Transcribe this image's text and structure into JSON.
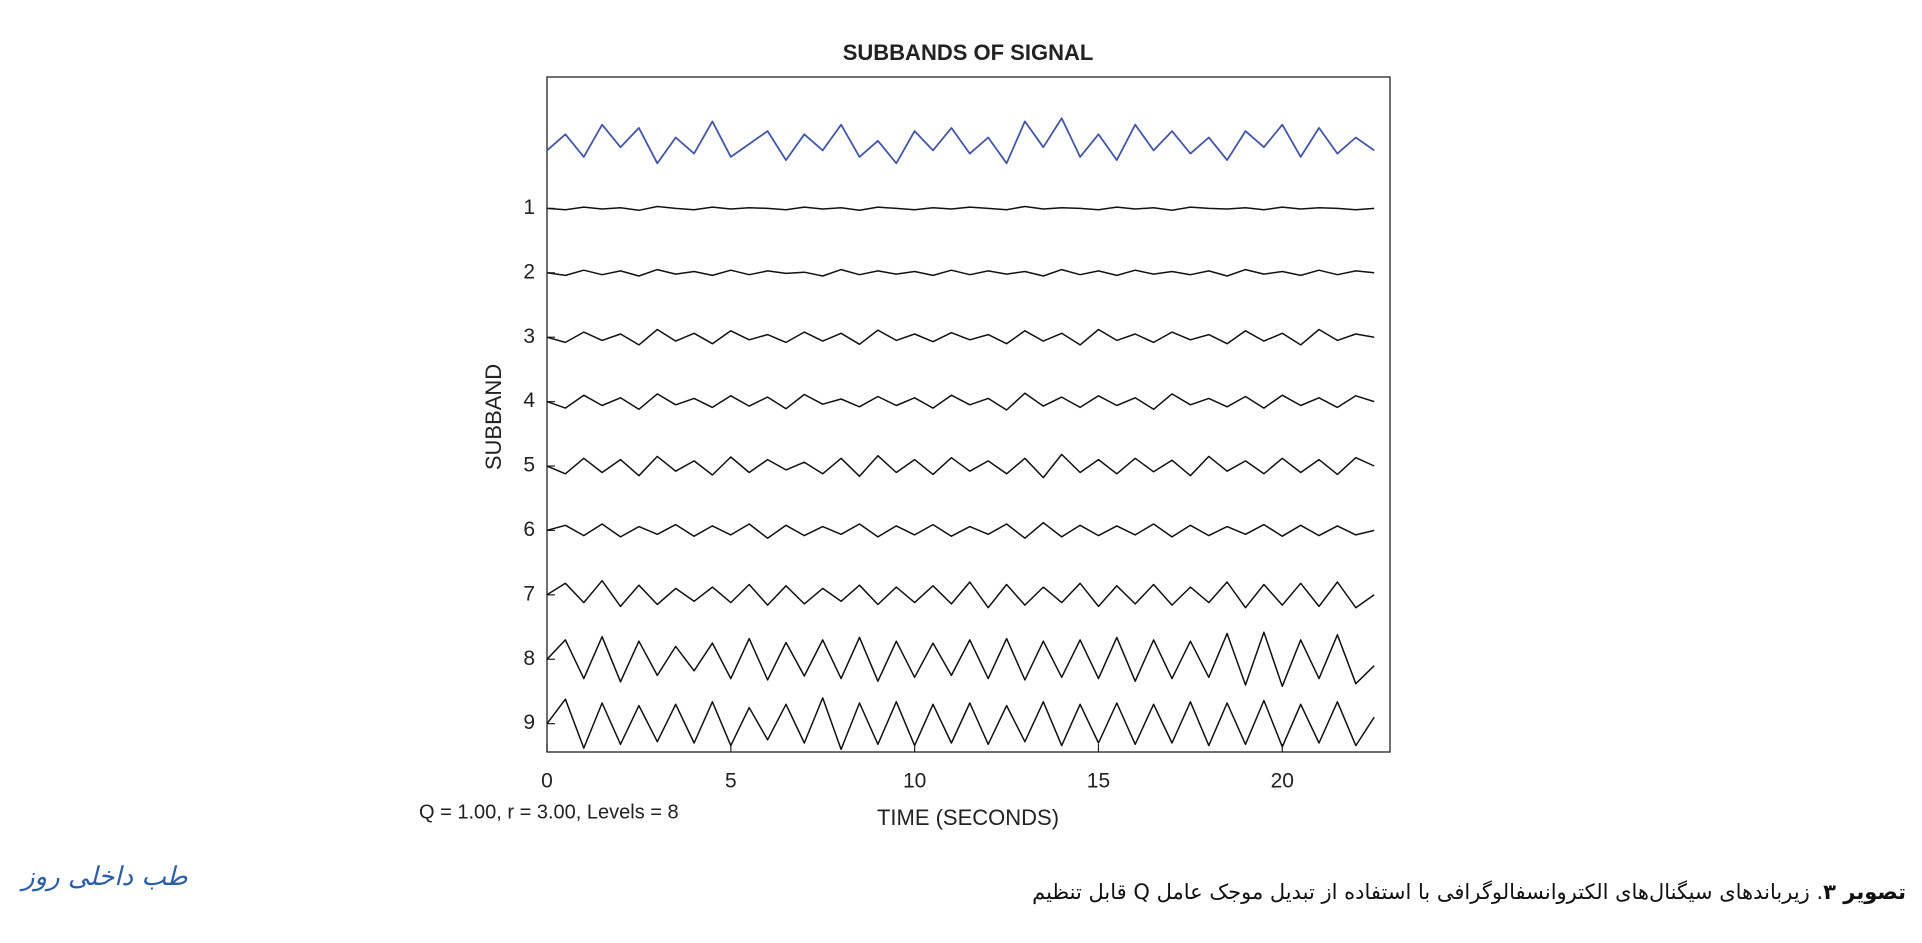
{
  "chart_data": {
    "type": "line",
    "title": "SUBBANDS OF SIGNAL",
    "x_label": "TIME (SECONDS)",
    "y_label": "SUBBAND",
    "annotation": "Q = 1.00, r = 3.00, Levels = 8",
    "xlim": [
      0,
      22.93
    ],
    "xticks": [
      0,
      5,
      10,
      15,
      20
    ],
    "ylim": [
      9.44,
      -1.04
    ],
    "yticks": [
      1,
      2,
      3,
      4,
      5,
      6,
      7,
      8,
      9
    ],
    "x": [
      0,
      0.5,
      1,
      1.5,
      2,
      2.5,
      3,
      3.5,
      4,
      4.5,
      5,
      5.5,
      6,
      6.5,
      7,
      7.5,
      8,
      8.5,
      9,
      9.5,
      10,
      10.5,
      11,
      11.5,
      12,
      12.5,
      13,
      13.5,
      14,
      14.5,
      15,
      15.5,
      16,
      16.5,
      17,
      17.5,
      18,
      18.5,
      19,
      19.5,
      20,
      20.5,
      21,
      21.5,
      22,
      22.5
    ],
    "series": [
      {
        "color": "#4356a8",
        "values": [
          0.1,
          -0.15,
          0.2,
          -0.3,
          0.05,
          -0.25,
          0.3,
          -0.1,
          0.15,
          -0.35,
          0.2,
          0.0,
          -0.2,
          0.25,
          -0.15,
          0.1,
          -0.3,
          0.2,
          -0.05,
          0.3,
          -0.2,
          0.1,
          -0.25,
          0.15,
          -0.1,
          0.3,
          -0.35,
          0.05,
          -0.4,
          0.2,
          -0.15,
          0.25,
          -0.3,
          0.1,
          -0.2,
          0.15,
          -0.1,
          0.25,
          -0.2,
          0.05,
          -0.3,
          0.2,
          -0.25,
          0.15,
          -0.1,
          0.1
        ]
      },
      {
        "color": "#111111",
        "values": [
          1,
          1.02,
          0.98,
          1.01,
          0.99,
          1.03,
          0.97,
          1,
          1.02,
          0.98,
          1.01,
          0.99,
          1,
          1.02,
          0.98,
          1.01,
          0.99,
          1.03,
          0.98,
          1,
          1.02,
          0.99,
          1.01,
          0.98,
          1,
          1.02,
          0.97,
          1.01,
          0.99,
          1,
          1.02,
          0.98,
          1.01,
          0.99,
          1.03,
          0.98,
          1,
          1.01,
          0.99,
          1.02,
          0.98,
          1.01,
          0.99,
          1,
          1.02,
          1
        ]
      },
      {
        "color": "#111111",
        "values": [
          2,
          2.04,
          1.96,
          2.03,
          1.97,
          2.05,
          1.95,
          2.02,
          1.98,
          2.04,
          1.96,
          2.03,
          1.97,
          2.01,
          1.99,
          2.05,
          1.95,
          2.03,
          1.97,
          2.02,
          1.98,
          2.04,
          1.96,
          2.03,
          1.97,
          2.02,
          1.98,
          2.05,
          1.95,
          2.03,
          1.97,
          2.04,
          1.96,
          2.02,
          1.98,
          2.03,
          1.97,
          2.05,
          1.95,
          2.02,
          1.98,
          2.04,
          1.96,
          2.03,
          1.97,
          2
        ]
      },
      {
        "color": "#111111",
        "values": [
          3,
          3.08,
          2.92,
          3.05,
          2.95,
          3.12,
          2.88,
          3.06,
          2.94,
          3.1,
          2.9,
          3.04,
          2.96,
          3.08,
          2.92,
          3.06,
          2.94,
          3.11,
          2.89,
          3.05,
          2.95,
          3.07,
          2.93,
          3.04,
          2.96,
          3.1,
          2.9,
          3.06,
          2.94,
          3.12,
          2.88,
          3.05,
          2.95,
          3.08,
          2.92,
          3.04,
          2.96,
          3.1,
          2.9,
          3.06,
          2.94,
          3.12,
          2.88,
          3.05,
          2.95,
          3
        ]
      },
      {
        "color": "#111111",
        "values": [
          4,
          4.1,
          3.9,
          4.06,
          3.94,
          4.12,
          3.88,
          4.05,
          3.95,
          4.09,
          3.91,
          4.07,
          3.93,
          4.11,
          3.89,
          4.04,
          3.96,
          4.08,
          3.92,
          4.06,
          3.94,
          4.1,
          3.9,
          4.05,
          3.95,
          4.13,
          3.87,
          4.07,
          3.93,
          4.09,
          3.91,
          4.06,
          3.94,
          4.12,
          3.88,
          4.05,
          3.95,
          4.08,
          3.92,
          4.1,
          3.9,
          4.06,
          3.94,
          4.09,
          3.91,
          4
        ]
      },
      {
        "color": "#111111",
        "values": [
          5,
          5.12,
          4.88,
          5.1,
          4.9,
          5.15,
          4.85,
          5.08,
          4.92,
          5.14,
          4.86,
          5.1,
          4.9,
          5.06,
          4.94,
          5.12,
          4.88,
          5.16,
          4.84,
          5.1,
          4.9,
          5.13,
          4.87,
          5.08,
          4.92,
          5.12,
          4.88,
          5.18,
          4.82,
          5.1,
          4.9,
          5.12,
          4.88,
          5.09,
          4.91,
          5.15,
          4.85,
          5.08,
          4.92,
          5.12,
          4.88,
          5.1,
          4.9,
          5.13,
          4.87,
          5
        ]
      },
      {
        "color": "#111111",
        "values": [
          6,
          5.92,
          6.08,
          5.9,
          6.1,
          5.94,
          6.06,
          5.91,
          6.09,
          5.93,
          6.07,
          5.9,
          6.12,
          5.92,
          6.08,
          5.94,
          6.06,
          5.9,
          6.1,
          5.93,
          6.07,
          5.91,
          6.09,
          5.94,
          6.06,
          5.9,
          6.12,
          5.88,
          6.1,
          5.92,
          6.08,
          5.93,
          6.07,
          5.9,
          6.1,
          5.92,
          6.08,
          5.94,
          6.06,
          5.91,
          6.09,
          5.92,
          6.08,
          5.93,
          6.07,
          6
        ]
      },
      {
        "color": "#111111",
        "values": [
          7,
          6.82,
          7.12,
          6.78,
          7.18,
          6.85,
          7.15,
          6.9,
          7.1,
          6.88,
          7.12,
          6.84,
          7.16,
          6.86,
          7.14,
          6.9,
          7.1,
          6.85,
          7.15,
          6.88,
          7.12,
          6.86,
          7.14,
          6.8,
          7.2,
          6.84,
          7.16,
          6.88,
          7.12,
          6.82,
          7.18,
          6.86,
          7.14,
          6.84,
          7.16,
          6.88,
          7.12,
          6.8,
          7.2,
          6.84,
          7.16,
          6.82,
          7.18,
          6.8,
          7.2,
          7
        ]
      },
      {
        "color": "#111111",
        "values": [
          8,
          7.7,
          8.3,
          7.65,
          8.35,
          7.72,
          8.25,
          7.8,
          8.18,
          7.75,
          8.3,
          7.68,
          8.32,
          7.74,
          8.26,
          7.7,
          8.3,
          7.66,
          8.34,
          7.72,
          8.28,
          7.75,
          8.25,
          7.7,
          8.3,
          7.68,
          8.32,
          7.72,
          8.28,
          7.7,
          8.3,
          7.66,
          8.34,
          7.7,
          8.3,
          7.72,
          8.28,
          7.6,
          8.4,
          7.58,
          8.42,
          7.7,
          8.3,
          7.62,
          8.38,
          8.1
        ]
      },
      {
        "color": "#111111",
        "values": [
          9,
          8.62,
          9.38,
          8.68,
          9.32,
          8.72,
          9.28,
          8.7,
          9.3,
          8.66,
          9.34,
          8.75,
          9.25,
          8.7,
          9.3,
          8.6,
          9.4,
          8.68,
          9.32,
          8.66,
          9.34,
          8.7,
          9.3,
          8.68,
          9.32,
          8.72,
          9.28,
          8.66,
          9.34,
          8.7,
          9.3,
          8.68,
          9.32,
          8.7,
          9.3,
          8.66,
          9.34,
          8.68,
          9.32,
          8.64,
          9.36,
          8.7,
          9.3,
          8.66,
          9.34,
          8.9
        ]
      }
    ]
  },
  "caption": {
    "label": "تصویر ۳",
    "text": ". زیرباندهای سیگنال‌های الکتروانسفالوگرافی با استفاده از تبدیل موجک عامل Q قابل تنظیم"
  },
  "logo": "طب داخلی روز"
}
